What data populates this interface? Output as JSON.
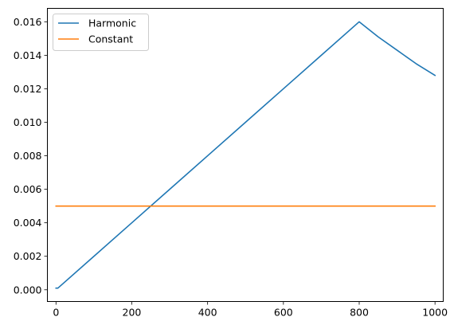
{
  "chart_data": {
    "type": "line",
    "title": "",
    "xlabel": "",
    "ylabel": "",
    "xlim": [
      -22.7,
      1021.7
    ],
    "ylim": [
      -0.0007,
      0.0168
    ],
    "xticks": [
      0,
      200,
      400,
      600,
      800,
      1000
    ],
    "yticks": [
      0.0,
      0.002,
      0.004,
      0.006,
      0.008,
      0.01,
      0.012,
      0.014,
      0.016
    ],
    "xtick_labels": [
      "0",
      "200",
      "400",
      "600",
      "800",
      "1000"
    ],
    "ytick_labels": [
      "0.000",
      "0.002",
      "0.004",
      "0.006",
      "0.008",
      "0.010",
      "0.012",
      "0.014",
      "0.016"
    ],
    "grid": false,
    "legend_position": "top-left",
    "series": [
      {
        "name": "Harmonic",
        "color": "#1f77b4",
        "x": [
          0,
          5,
          100,
          200,
          300,
          400,
          500,
          600,
          700,
          800,
          850,
          900,
          950,
          1000
        ],
        "y": [
          0.0001,
          0.0001,
          0.002,
          0.004,
          0.006,
          0.008,
          0.01,
          0.012,
          0.014,
          0.016,
          0.0151,
          0.0143,
          0.0135,
          0.0128
        ]
      },
      {
        "name": "Constant",
        "color": "#ff7f0e",
        "x": [
          0,
          1000
        ],
        "y": [
          0.005,
          0.005
        ]
      }
    ]
  }
}
